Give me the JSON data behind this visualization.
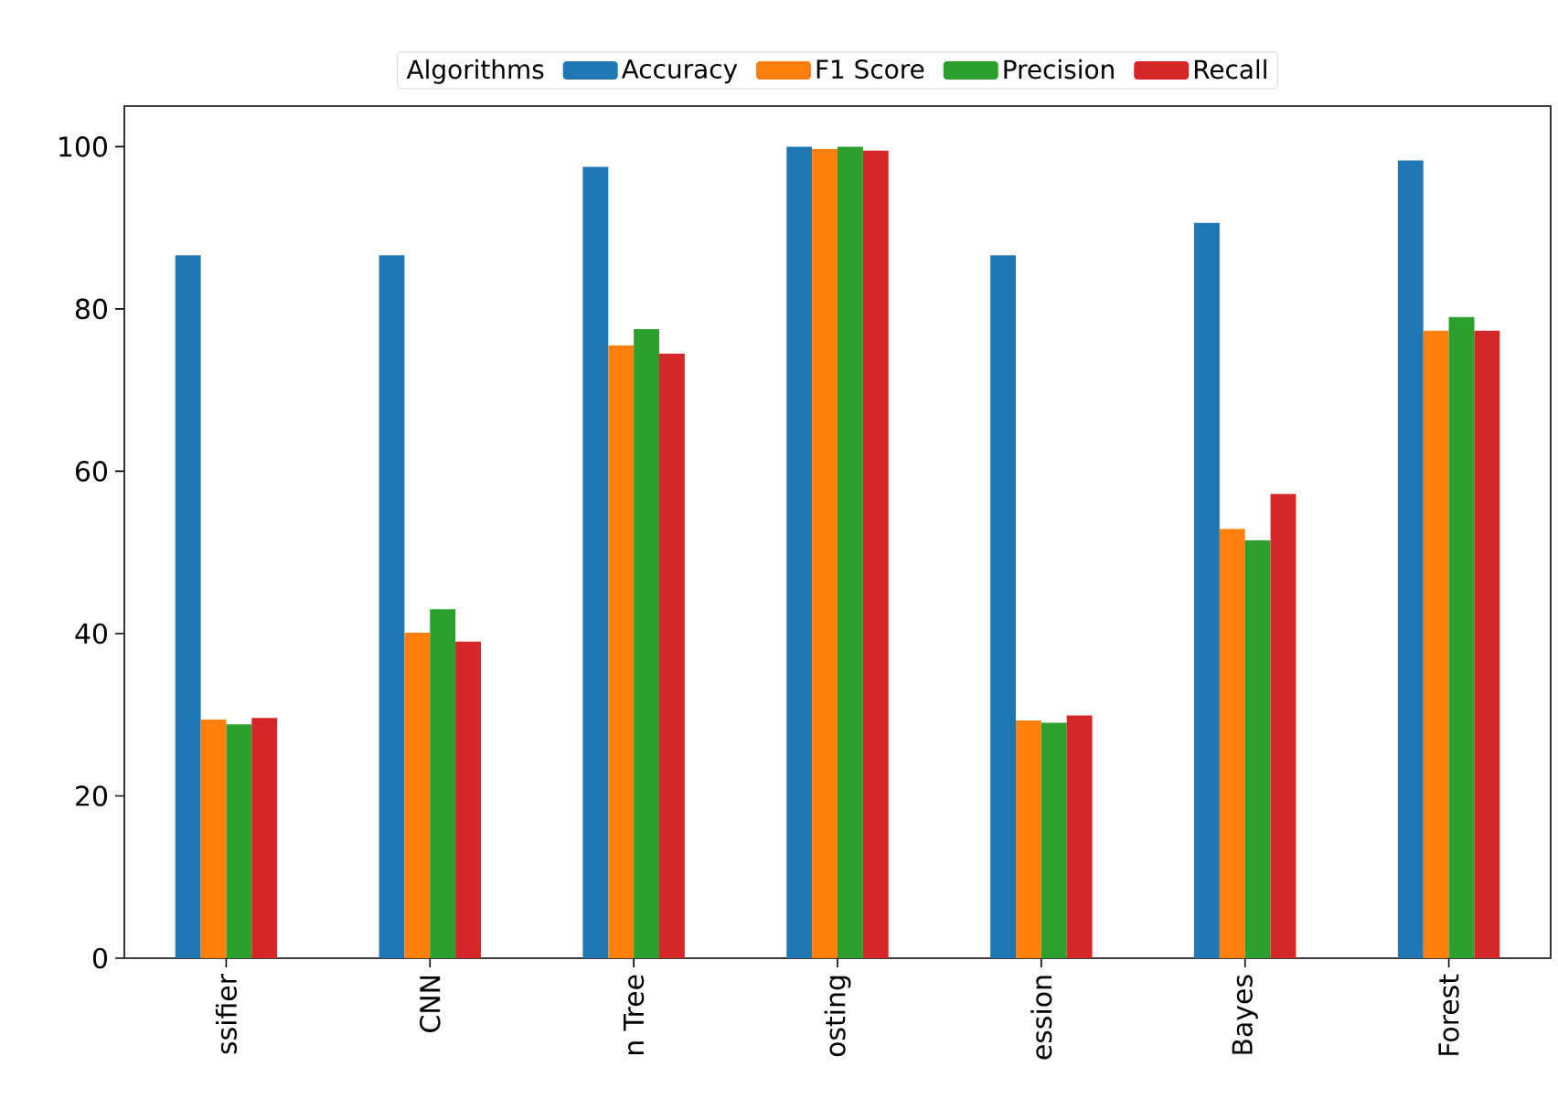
{
  "chart_data": {
    "type": "bar",
    "legend_title": "Algorithms",
    "legend": "top",
    "categories": [
      "ssifier",
      "CNN",
      "n Tree",
      "osting",
      "ession",
      "Bayes",
      "Forest"
    ],
    "series": [
      {
        "name": "Accuracy",
        "color": "#1f77b4",
        "values": [
          86.6,
          86.6,
          97.5,
          100.0,
          86.6,
          90.6,
          98.3
        ]
      },
      {
        "name": "F1 Score",
        "color": "#ff7f0e",
        "values": [
          29.4,
          40.1,
          75.5,
          99.7,
          29.3,
          52.9,
          77.3
        ]
      },
      {
        "name": "Precision",
        "color": "#2ca02c",
        "values": [
          28.8,
          43.0,
          77.5,
          100.0,
          29.0,
          51.5,
          79.0
        ]
      },
      {
        "name": "Recall",
        "color": "#d62728",
        "values": [
          29.6,
          39.0,
          74.5,
          99.5,
          29.9,
          57.2,
          77.3
        ]
      }
    ],
    "ylim": [
      0,
      105
    ],
    "yticks": [
      0,
      20,
      40,
      60,
      80,
      100
    ]
  }
}
